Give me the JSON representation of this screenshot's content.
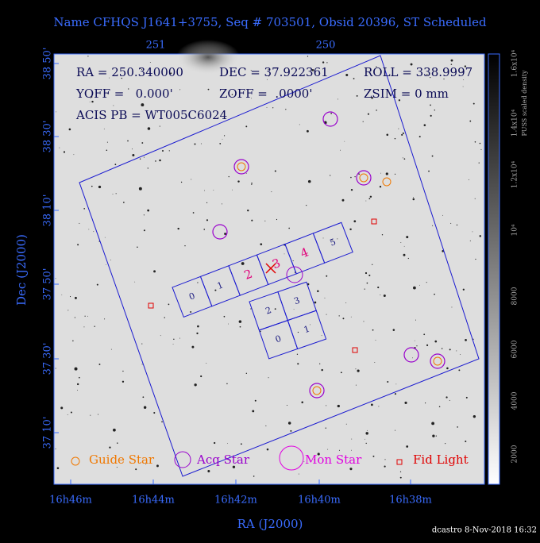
{
  "title": "Name CFHQS J1641+3755, Seq # 703501, Obsid 20396, ST Scheduled",
  "info": [
    "RA = 250.340000",
    "DEC = 37.922361",
    "ROLL = 338.9997",
    "YOFF =   0.000'",
    "ZOFF =  .0000'",
    "ZSIM = 0 mm",
    "ACIS PB = WT005C6024"
  ],
  "top_axis_ticks": [
    "251",
    "250"
  ],
  "x_axis": {
    "label": "RA (J2000)",
    "ticks": [
      "16h46m",
      "16h44m",
      "16h42m",
      "16h40m",
      "16h38m"
    ]
  },
  "y_axis": {
    "label": "Dec (J2000)",
    "ticks": [
      "38 50'",
      "38 30'",
      "38 10'",
      "37 50'",
      "37 30'",
      "37 10'"
    ]
  },
  "colorbar": {
    "label": "PUSS scaled density",
    "ticks": [
      "2000",
      "4000",
      "6000",
      "8000",
      "10⁴",
      "1.2x10⁴",
      "1.4x10⁴",
      "1.6x10⁴"
    ]
  },
  "s_array_labels": [
    "0",
    "1",
    "2",
    "3",
    "4",
    "5"
  ],
  "i_array_labels": [
    "2",
    "3",
    "0",
    "1"
  ],
  "legend": [
    "Guide Star",
    "Acq Star",
    "Mon Star",
    "Fid Light"
  ],
  "footer": "dcastro  8-Nov-2018 16:32"
}
